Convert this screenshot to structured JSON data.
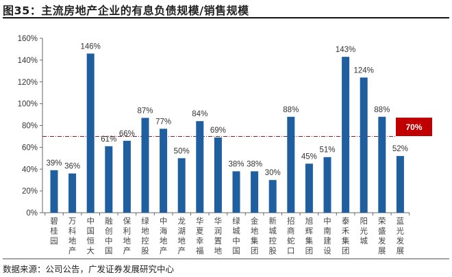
{
  "title": "图35：主流房地产企业的有息负债规模/销售规模",
  "source": "数据来源：公司公告，广发证券发展研究中心",
  "chart_data": {
    "type": "bar",
    "title": "",
    "xlabel": "",
    "ylabel": "",
    "ylim": [
      0,
      160
    ],
    "yticks": [
      "0%",
      "20%",
      "40%",
      "60%",
      "80%",
      "100%",
      "120%",
      "140%",
      "160%"
    ],
    "grid": false,
    "categories": [
      "碧桂园",
      "万科地产",
      "中国恒大",
      "融创中国",
      "保利地产",
      "绿地控股",
      "中海地产",
      "龙湖地产",
      "华夏幸福",
      "华润置地",
      "绿城中国",
      "金地集团",
      "新城控股",
      "招商蛇口",
      "旭辉集团",
      "中南建设",
      "泰禾集团",
      "阳光城",
      "荣盛发展",
      "蓝光发展"
    ],
    "values": [
      39,
      36,
      146,
      61,
      66,
      87,
      77,
      50,
      84,
      69,
      38,
      38,
      30,
      88,
      45,
      51,
      143,
      124,
      88,
      52
    ],
    "data_labels": [
      "39%",
      "36%",
      "146%",
      "61%",
      "66%",
      "87%",
      "77%",
      "50%",
      "84%",
      "69%",
      "38%",
      "38%",
      "30%",
      "88%",
      "45%",
      "51%",
      "143%",
      "124%",
      "88%",
      "52%"
    ],
    "reference_line": {
      "value": 70,
      "label": "70%",
      "color": "#c00000",
      "style": "dash-dot"
    },
    "bar_color": "#1f5fa0"
  }
}
